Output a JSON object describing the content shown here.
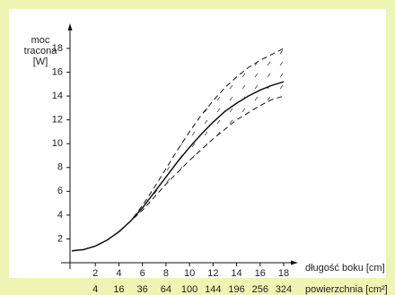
{
  "chart_data": {
    "type": "line",
    "ylabel": [
      "moc",
      "tracona",
      "[W]"
    ],
    "xlabel": "długość boku [cm]",
    "x2label": "powierzchnia [cm²]",
    "x": [
      0,
      1,
      2,
      3,
      4,
      5,
      6,
      7,
      8,
      9,
      10,
      11,
      12,
      13,
      14,
      15,
      16,
      17,
      18
    ],
    "series": [
      {
        "color": "#111111",
        "style": "solid",
        "values": [
          1.0,
          1.1,
          1.4,
          1.9,
          2.6,
          3.5,
          4.6,
          5.9,
          7.2,
          8.5,
          9.7,
          10.8,
          11.8,
          12.7,
          13.4,
          14.0,
          14.5,
          14.9,
          15.2
        ]
      },
      {
        "color": "#111111",
        "style": "dashed",
        "values": [
          1.0,
          1.1,
          1.4,
          1.9,
          2.6,
          3.5,
          4.8,
          6.3,
          7.9,
          9.5,
          11.0,
          12.4,
          13.6,
          14.7,
          15.6,
          16.4,
          17.0,
          17.5,
          18.0
        ]
      },
      {
        "color": "#111111",
        "style": "dashed",
        "values": [
          1.0,
          1.1,
          1.4,
          1.9,
          2.6,
          3.5,
          4.4,
          5.5,
          6.6,
          7.6,
          8.6,
          9.5,
          10.4,
          11.2,
          12.0,
          12.6,
          13.2,
          13.7,
          14.0
        ]
      }
    ],
    "band": [
      1,
      2
    ],
    "xlim": [
      0,
      18
    ],
    "ylim": [
      0,
      18
    ],
    "xticks": [
      2,
      4,
      6,
      8,
      10,
      12,
      14,
      16,
      18
    ],
    "yticks": [
      2,
      4,
      6,
      8,
      10,
      12,
      14,
      16,
      18
    ],
    "x2ticks": [
      4,
      16,
      36,
      64,
      100,
      144,
      196,
      256,
      324
    ],
    "x2scale": "sqrt",
    "grid": false
  }
}
